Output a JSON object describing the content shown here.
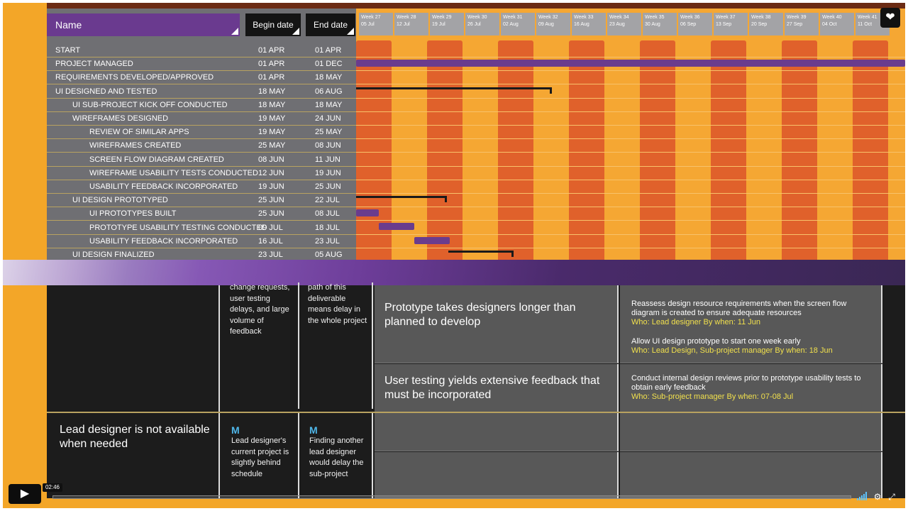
{
  "gantt": {
    "header": {
      "name": "Name",
      "begin": "Begin date",
      "end": "End date"
    },
    "weeks": [
      {
        "week": "Week 27",
        "date": "05 Jul"
      },
      {
        "week": "Week 28",
        "date": "12 Jul"
      },
      {
        "week": "Week 29",
        "date": "19 Jul"
      },
      {
        "week": "Week 30",
        "date": "26 Jul"
      },
      {
        "week": "Week 31",
        "date": "02 Aug"
      },
      {
        "week": "Week 32",
        "date": "09 Aug"
      },
      {
        "week": "Week 33",
        "date": "16 Aug"
      },
      {
        "week": "Week 34",
        "date": "23 Aug"
      },
      {
        "week": "Week 35",
        "date": "30 Aug"
      },
      {
        "week": "Week 36",
        "date": "06 Sep"
      },
      {
        "week": "Week 37",
        "date": "13 Sep"
      },
      {
        "week": "Week 38",
        "date": "20 Sep"
      },
      {
        "week": "Week 39",
        "date": "27 Sep"
      },
      {
        "week": "Week 40",
        "date": "04 Oct"
      },
      {
        "week": "Week 41",
        "date": "11 Oct"
      }
    ],
    "tasks": [
      {
        "name": "START",
        "begin": "01 Apr",
        "end": "01 Apr",
        "level": 0
      },
      {
        "name": "PROJECT MANAGED",
        "begin": "01 Apr",
        "end": "01 Dec",
        "level": 0
      },
      {
        "name": "REQUIREMENTS DEVELOPED/APPROVED",
        "begin": "01 Apr",
        "end": "18 May",
        "level": 0
      },
      {
        "name": "UI DESIGNED AND TESTED",
        "begin": "18 May",
        "end": "06 Aug",
        "level": 0
      },
      {
        "name": "UI SUB-PROJECT KICK OFF CONDUCTED",
        "begin": "18 May",
        "end": "18 May",
        "level": 1
      },
      {
        "name": "WIREFRAMES DESIGNED",
        "begin": "19 May",
        "end": "24 Jun",
        "level": 2
      },
      {
        "name": "REVIEW OF SIMILAR APPS",
        "begin": "19 May",
        "end": "25 May",
        "level": 3
      },
      {
        "name": "WIREFRAMES CREATED",
        "begin": "25 May",
        "end": "08 Jun",
        "level": 3
      },
      {
        "name": "SCREEN FLOW DIAGRAM CREATED",
        "begin": "08 Jun",
        "end": "11 Jun",
        "level": 3
      },
      {
        "name": "WIREFRAME USABILITY TESTS CONDUCTED",
        "begin": "12 Jun",
        "end": "19 Jun",
        "level": 3
      },
      {
        "name": "USABILITY FEEDBACK INCORPORATED",
        "begin": "19 Jun",
        "end": "25 Jun",
        "level": 3
      },
      {
        "name": "UI DESIGN PROTOTYPED",
        "begin": "25 Jun",
        "end": "22 Jul",
        "level": 2
      },
      {
        "name": "UI PROTOTYPES BUILT",
        "begin": "25 Jun",
        "end": "08 Jul",
        "level": 3
      },
      {
        "name": "PROTOTYPE USABILITY TESTING CONDUCTED",
        "begin": "09 Jul",
        "end": "18 Jul",
        "level": 3
      },
      {
        "name": "USABILITY FEEDBACK INCORPORATED",
        "begin": "16 Jul",
        "end": "23 Jul",
        "level": 3
      },
      {
        "name": "UI DESIGN FINALIZED",
        "begin": "23 Jul",
        "end": "05 Aug",
        "level": 2
      }
    ]
  },
  "risk_table": {
    "row1": {
      "impact_text": "change requests, user testing delays, and large volume of feedback",
      "schedule_text": "path of this deliverable means delay in the whole project",
      "risk_a": "Prototype takes designers longer than planned to develop",
      "risk_b": "User testing yields extensive feedback that must be incorporated",
      "mitigation_a1": "Reassess design resource requirements when the screen flow diagram is created to ensure adequate resources",
      "who_a1": "Who: Lead designer  By when: 11 Jun",
      "mitigation_a2": "Allow UI design prototype to start one week early",
      "who_a2": "Who: Lead Design, Sub-project manager  By when: 18 Jun",
      "mitigation_b": "Conduct internal design reviews prior to prototype usability tests to obtain early feedback",
      "who_b": "Who: Sub-project manager  By when:  07-08 Jul"
    },
    "row2": {
      "risk": "Lead designer is not available when needed",
      "badge1": "M",
      "impact": "Lead designer's current project is slightly behind schedule",
      "badge2": "M",
      "schedule": "Finding another lead designer would delay the sub-project"
    }
  },
  "player": {
    "time": "02:46",
    "play_icon": "play-icon",
    "volume_icon": "volume-icon",
    "settings_icon": "gear-icon",
    "fullscreen_icon": "fullscreen-icon",
    "like_icon": "heart-icon"
  }
}
